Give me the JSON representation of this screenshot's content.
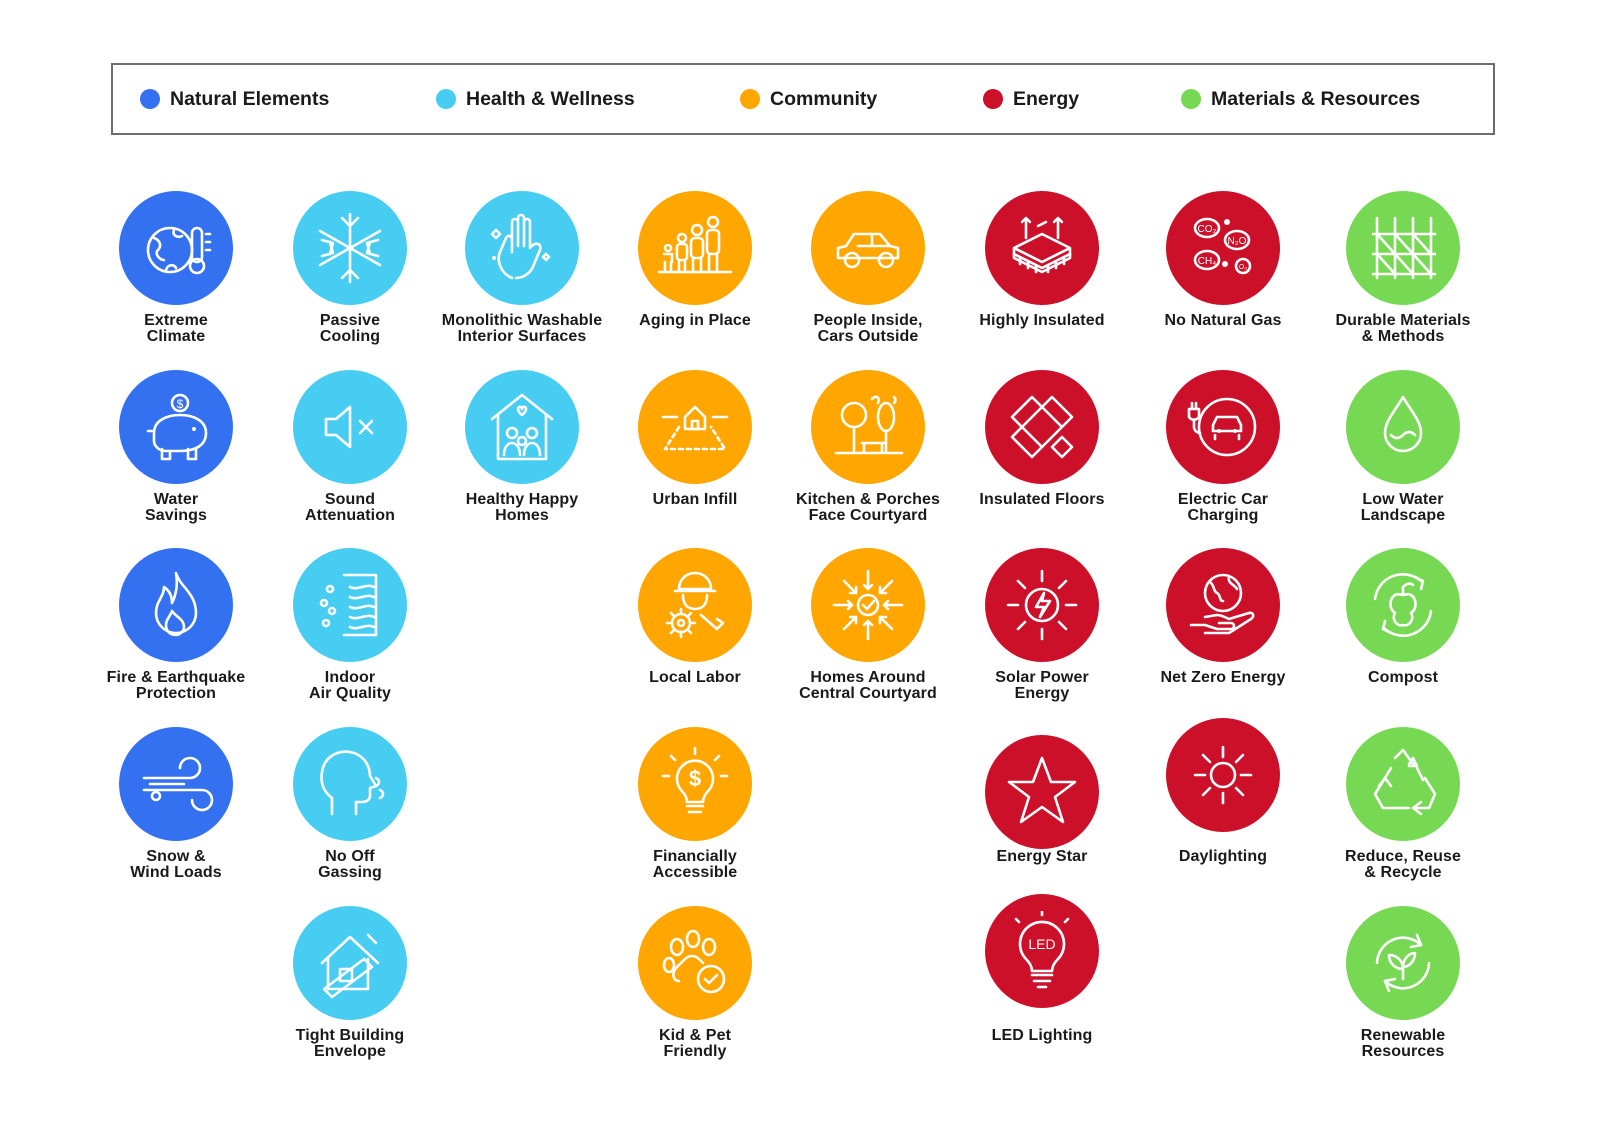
{
  "legend": [
    {
      "label": "Natural Elements",
      "color": "#3471f0"
    },
    {
      "label": "Health & Wellness",
      "color": "#48cdf2"
    },
    {
      "label": "Community",
      "color": "#ffa600"
    },
    {
      "label": "Energy",
      "color": "#cc102a"
    },
    {
      "label": "Materials & Resources",
      "color": "#77d953"
    }
  ],
  "categories": {
    "natural": "#3471f0",
    "health": "#48cdf2",
    "community": "#ffa600",
    "energy": "#cc102a",
    "materials": "#77d953"
  },
  "features": [
    {
      "label": "Extreme\nClimate",
      "category": "natural",
      "icon": "globe-thermometer-icon"
    },
    {
      "label": "Water\nSavings",
      "category": "natural",
      "icon": "piggy-bank-icon"
    },
    {
      "label": "Fire & Earthquake\nProtection",
      "category": "natural",
      "icon": "flame-icon"
    },
    {
      "label": "Snow &\nWind Loads",
      "category": "natural",
      "icon": "wind-icon"
    },
    {
      "label": "Passive\nCooling",
      "category": "health",
      "icon": "snowflake-icon"
    },
    {
      "label": "Sound\nAttenuation",
      "category": "health",
      "icon": "speaker-mute-icon"
    },
    {
      "label": "Indoor\nAir Quality",
      "category": "health",
      "icon": "air-filter-icon"
    },
    {
      "label": "No Off\nGassing",
      "category": "health",
      "icon": "head-breath-icon"
    },
    {
      "label": "Tight Building\nEnvelope",
      "category": "health",
      "icon": "house-sealing-icon"
    },
    {
      "label": "Monolithic Washable\nInterior Surfaces",
      "category": "health",
      "icon": "hand-wipe-icon"
    },
    {
      "label": "Healthy Happy\nHomes",
      "category": "health",
      "icon": "family-house-icon"
    },
    {
      "label": "Aging in Place",
      "category": "community",
      "icon": "family-ages-icon"
    },
    {
      "label": "Urban Infill",
      "category": "community",
      "icon": "house-lot-icon"
    },
    {
      "label": "Local Labor",
      "category": "community",
      "icon": "worker-gear-icon"
    },
    {
      "label": "Financially\nAccessible",
      "category": "community",
      "icon": "dollar-bulb-icon"
    },
    {
      "label": "Kid & Pet\nFriendly",
      "category": "community",
      "icon": "paw-check-icon"
    },
    {
      "label": "People Inside,\nCars Outside",
      "category": "community",
      "icon": "car-icon"
    },
    {
      "label": "Kitchen & Porches\nFace Courtyard",
      "category": "community",
      "icon": "park-trees-icon"
    },
    {
      "label": "Homes Around\nCentral Courtyard",
      "category": "community",
      "icon": "converging-arrows-icon"
    },
    {
      "label": "Highly Insulated",
      "category": "energy",
      "icon": "insulation-layers-icon"
    },
    {
      "label": "Insulated Floors",
      "category": "energy",
      "icon": "herringbone-floor-icon"
    },
    {
      "label": "Solar Power\nEnergy",
      "category": "energy",
      "icon": "solar-bolt-icon"
    },
    {
      "label": "Energy Star",
      "category": "energy",
      "icon": "star-icon"
    },
    {
      "label": "LED Lighting",
      "category": "energy",
      "icon": "led-bulb-icon"
    },
    {
      "label": "No Natural Gas",
      "category": "energy",
      "icon": "gas-molecules-icon"
    },
    {
      "label": "Electric Car\nCharging",
      "category": "energy",
      "icon": "ev-charging-icon"
    },
    {
      "label": "Net Zero Energy",
      "category": "energy",
      "icon": "globe-hand-icon"
    },
    {
      "label": "Daylighting",
      "category": "energy",
      "icon": "sun-icon"
    },
    {
      "label": "Durable Materials\n& Methods",
      "category": "materials",
      "icon": "scaffold-icon"
    },
    {
      "label": "Low Water\nLandscape",
      "category": "materials",
      "icon": "water-drop-icon"
    },
    {
      "label": "Compost",
      "category": "materials",
      "icon": "apple-cycle-icon"
    },
    {
      "label": "Reduce, Reuse\n& Recycle",
      "category": "materials",
      "icon": "recycle-icon"
    },
    {
      "label": "Renewable\nResources",
      "category": "materials",
      "icon": "leaf-cycle-icon"
    }
  ],
  "chars": {
    "co2": "CO₂",
    "n2o": "N₂O",
    "ch4": "CH₄",
    "o3": "O₃",
    "led": "LED",
    "dollar": "$"
  }
}
